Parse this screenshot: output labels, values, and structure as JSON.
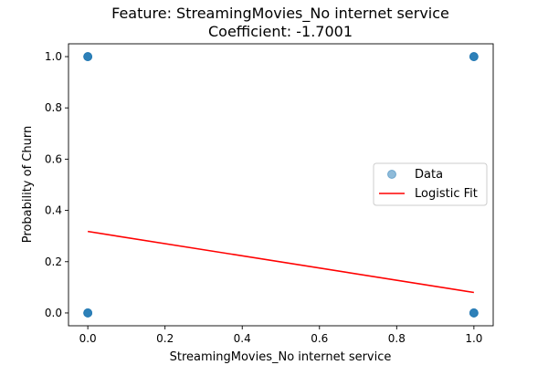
{
  "chart_data": {
    "type": "scatter",
    "title": "Feature: StreamingMovies_No internet service",
    "subtitle": "Coefficient: -1.7001",
    "xlabel": "StreamingMovies_No internet service",
    "ylabel": "Probability of Churn",
    "xlim": [
      -0.05,
      1.05
    ],
    "ylim": [
      -0.05,
      1.05
    ],
    "xticks": [
      0.0,
      0.2,
      0.4,
      0.6,
      0.8,
      1.0
    ],
    "xtick_labels": [
      "0.0",
      "0.2",
      "0.4",
      "0.6",
      "0.8",
      "1.0"
    ],
    "yticks": [
      0.0,
      0.2,
      0.4,
      0.6,
      0.8,
      1.0
    ],
    "ytick_labels": [
      "0.0",
      "0.2",
      "0.4",
      "0.6",
      "0.8",
      "1.0"
    ],
    "grid": false,
    "legend_position": "center-right",
    "series": [
      {
        "name": "Data",
        "kind": "scatter",
        "color": "#1f77b4",
        "alpha": 0.5,
        "points": [
          [
            0,
            0
          ],
          [
            0,
            1
          ],
          [
            1,
            0
          ],
          [
            1,
            1
          ]
        ]
      },
      {
        "name": "Logistic Fit",
        "kind": "line",
        "color": "#ff0000",
        "points": [
          [
            0,
            0.318
          ],
          [
            1,
            0.08
          ]
        ]
      }
    ]
  }
}
